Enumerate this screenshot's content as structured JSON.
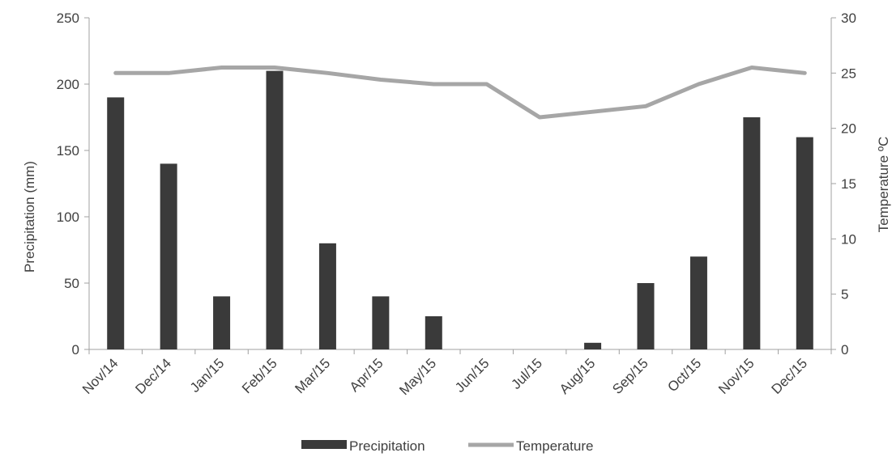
{
  "chart_data": {
    "type": "bar",
    "categories": [
      "Nov/14",
      "Dec/14",
      "Jan/15",
      "Feb/15",
      "Mar/15",
      "Apr/15",
      "May/15",
      "Jun/15",
      "Jul/15",
      "Aug/15",
      "Sep/15",
      "Oct/15",
      "Nov/15",
      "Dec/15"
    ],
    "series": [
      {
        "name": "Precipitation",
        "type": "bar",
        "axis": "left",
        "color": "#3a3a3a",
        "values": [
          190,
          140,
          40,
          210,
          80,
          40,
          25,
          0,
          0,
          5,
          50,
          70,
          175,
          160
        ]
      },
      {
        "name": "Temperature",
        "type": "line",
        "axis": "right",
        "color": "#a6a6a6",
        "values": [
          25,
          25,
          25.5,
          25.5,
          25,
          24.4,
          24,
          24,
          21,
          21.5,
          22,
          24,
          25.5,
          25
        ]
      }
    ],
    "ylabel": "Precipitation (mm)",
    "ylim": [
      0,
      250
    ],
    "yticks": [
      0,
      50,
      100,
      150,
      200,
      250
    ],
    "y2label": "Temperature ºC",
    "y2lim": [
      0,
      30
    ],
    "y2ticks": [
      0,
      5,
      10,
      15,
      20,
      25,
      30
    ],
    "grid": false,
    "legend_position": "bottom"
  }
}
